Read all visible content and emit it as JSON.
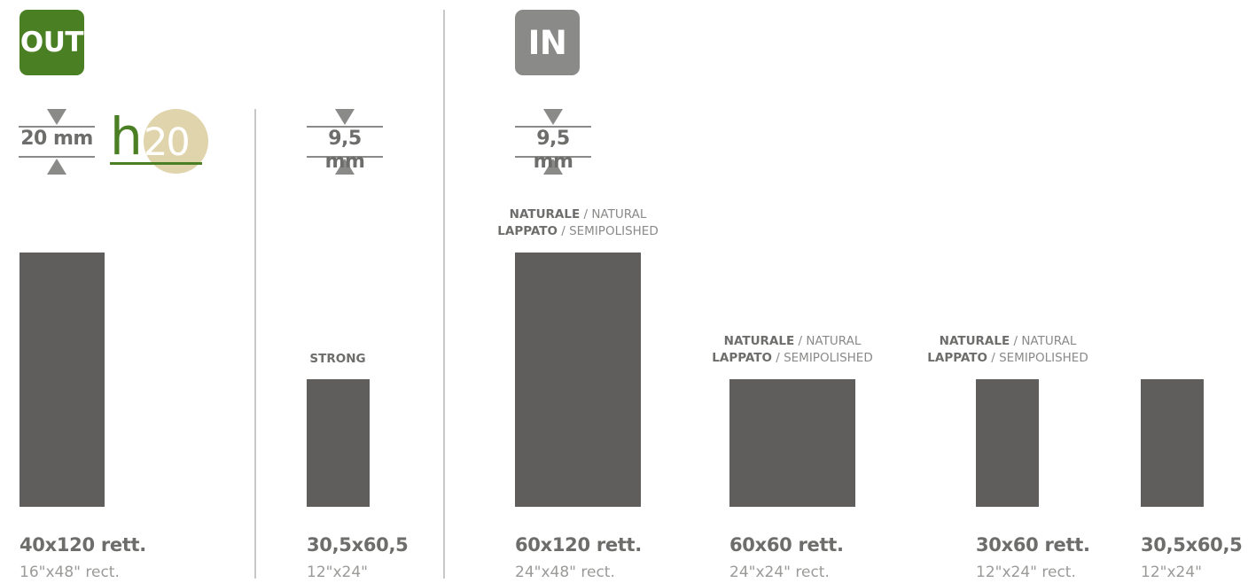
{
  "badges": {
    "out": "OUT",
    "in": "IN"
  },
  "thickness": {
    "out": "20 mm",
    "strong": "9,5 mm",
    "in": "9,5 mm"
  },
  "h20_logo": {
    "letter": "h",
    "number": "20"
  },
  "colors": {
    "green": "#4b7f24",
    "gray_badge": "#8a8a89",
    "tile": "#5f5e5c",
    "logo_circle": "#dfd4ab"
  },
  "tiles": [
    {
      "size": "40x120 rett.",
      "imperial": "16\"x48\" rect.",
      "finish_lines": []
    },
    {
      "size": "30,5x60,5",
      "imperial": "12\"x24\"",
      "finish_lines": [
        {
          "bold": "STRONG",
          "rest": ""
        }
      ]
    },
    {
      "size": "60x120 rett.",
      "imperial": "24\"x48\" rect.",
      "finish_lines": [
        {
          "bold": "NATURALE",
          "rest": " / NATURAL"
        },
        {
          "bold": "LAPPATO",
          "rest": " / SEMIPOLISHED"
        }
      ]
    },
    {
      "size": "60x60 rett.",
      "imperial": "24\"x24\" rect.",
      "finish_lines": [
        {
          "bold": "NATURALE",
          "rest": " / NATURAL"
        },
        {
          "bold": "LAPPATO",
          "rest": " / SEMIPOLISHED"
        }
      ]
    },
    {
      "size": "30x60 rett.",
      "imperial": "12\"x24\" rect.",
      "finish_lines": [
        {
          "bold": "NATURALE",
          "rest": " / NATURAL"
        },
        {
          "bold": "LAPPATO",
          "rest": " / SEMIPOLISHED"
        }
      ]
    },
    {
      "size": "30,5x60,5",
      "imperial": "12\"x24\"",
      "finish_lines": []
    }
  ]
}
